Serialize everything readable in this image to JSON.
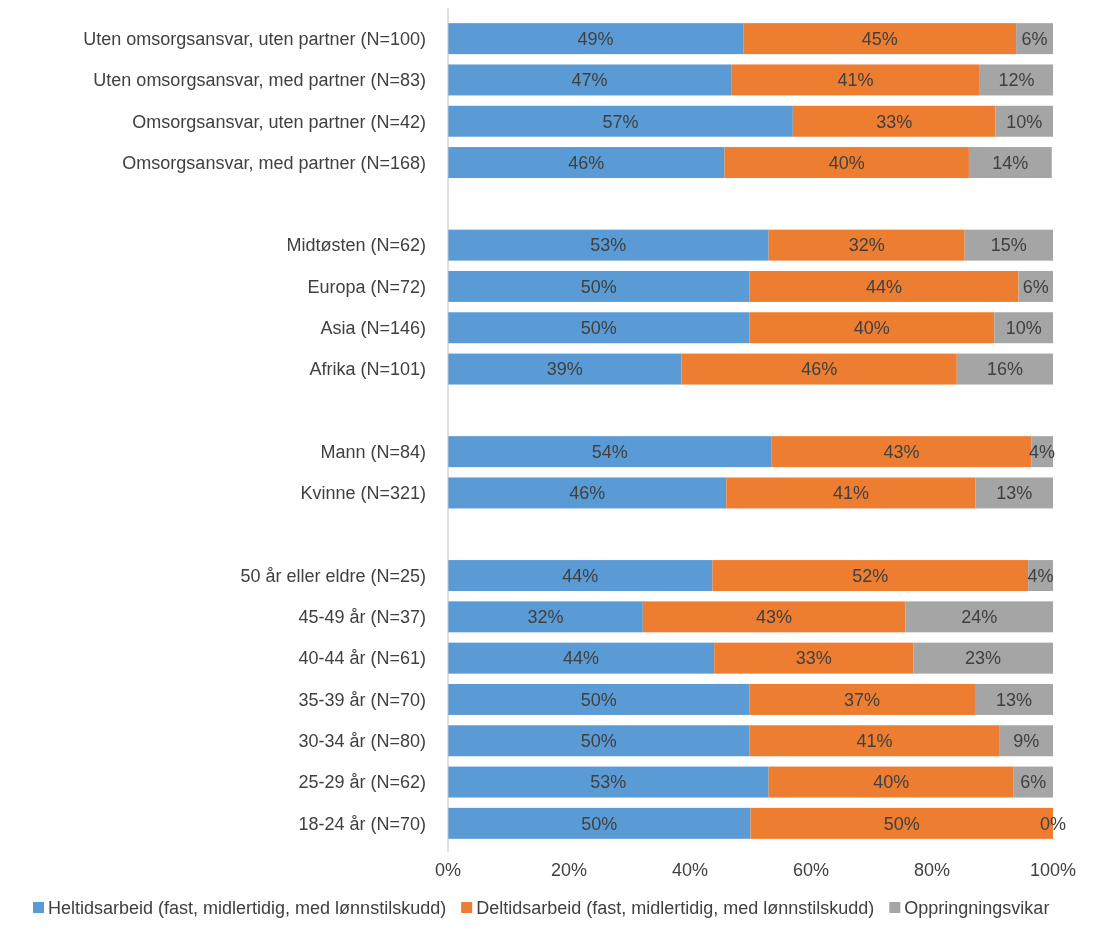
{
  "chart_data": {
    "type": "bar",
    "orientation": "horizontal",
    "stacked": true,
    "categories": [
      "Uten omsorgsansvar, uten partner (N=100)",
      "Uten omsorgsansvar, med partner (N=83)",
      "Omsorgsansvar, uten partner (N=42)",
      "Omsorgsansvar, med partner (N=168)",
      null,
      "Midtøsten (N=62)",
      "Europa (N=72)",
      "Asia (N=146)",
      "Afrika (N=101)",
      null,
      "Mann (N=84)",
      "Kvinne (N=321)",
      null,
      "50 år eller eldre (N=25)",
      "45-49 år (N=37)",
      "40-44 år (N=61)",
      "35-39 år (N=70)",
      "30-34 år (N=80)",
      "25-29 år (N=62)",
      "18-24 år (N=70)"
    ],
    "series": [
      {
        "name": "Heltidsarbeid (fast, midlertidig, med lønnstilskudd)",
        "color": "#5b9bd5",
        "values": [
          48.8,
          46.8,
          57.0,
          45.7,
          null,
          53.0,
          49.8,
          49.8,
          38.6,
          null,
          53.5,
          46.0,
          null,
          43.7,
          32.2,
          44.0,
          49.8,
          49.8,
          53.0,
          50.0
        ],
        "value_labels": [
          "49%",
          "47%",
          "57%",
          "46%",
          null,
          "53%",
          "50%",
          "50%",
          "39%",
          null,
          "54%",
          "46%",
          null,
          "44%",
          "32%",
          "44%",
          "50%",
          "50%",
          "53%",
          "50%"
        ]
      },
      {
        "name": "Deltidsarbeid (fast, midlertidig, med lønnstilskudd)",
        "color": "#ed7d31",
        "values": [
          45.1,
          41.1,
          33.5,
          40.4,
          null,
          32.4,
          44.5,
          40.5,
          45.5,
          null,
          42.9,
          41.2,
          null,
          52.2,
          43.4,
          32.9,
          37.3,
          41.4,
          40.5,
          50.0
        ],
        "value_labels": [
          "45%",
          "41%",
          "33%",
          "40%",
          null,
          "32%",
          "44%",
          "40%",
          "46%",
          null,
          "43%",
          "41%",
          null,
          "52%",
          "43%",
          "33%",
          "37%",
          "41%",
          "40%",
          "50%"
        ]
      },
      {
        "name": "Oppringningsvikar",
        "color": "#a5a5a5",
        "values": [
          6.1,
          12.1,
          9.5,
          13.7,
          null,
          14.6,
          5.7,
          9.7,
          15.9,
          null,
          3.6,
          12.8,
          null,
          4.1,
          24.4,
          23.1,
          12.9,
          8.8,
          6.5,
          0
        ],
        "value_labels": [
          "6%",
          "12%",
          "10%",
          "14%",
          null,
          "15%",
          "6%",
          "10%",
          "16%",
          null,
          "4%",
          "13%",
          null,
          "4%",
          "24%",
          "23%",
          "13%",
          "9%",
          "6%",
          "0%"
        ]
      }
    ],
    "xlim": [
      0,
      100
    ],
    "xticks": [
      {
        "value": 0,
        "label": "0%"
      },
      {
        "value": 20,
        "label": "20%"
      },
      {
        "value": 40,
        "label": "40%"
      },
      {
        "value": 60,
        "label": "60%"
      },
      {
        "value": 80,
        "label": "80%"
      },
      {
        "value": 100,
        "label": "100%"
      }
    ],
    "grid": false,
    "legend": "bottom"
  }
}
